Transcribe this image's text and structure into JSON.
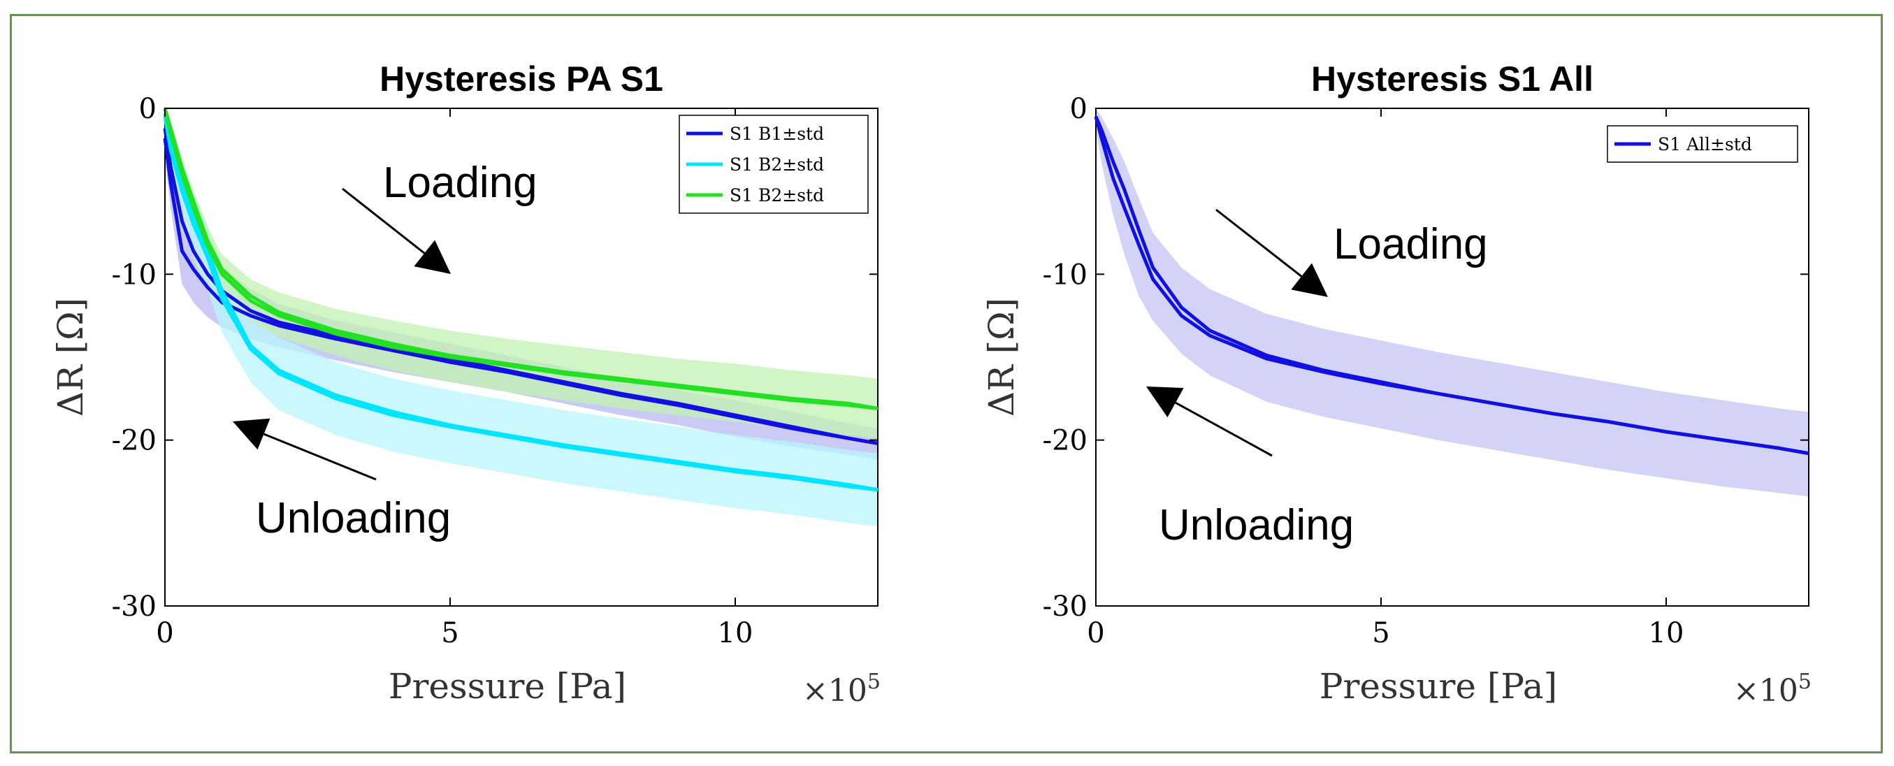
{
  "chart_data": [
    {
      "type": "line",
      "title": "Hysteresis PA S1",
      "xlabel": "Pressure [Pa]",
      "ylabel": "ΔR [Ω]",
      "x_multiplier": "×10",
      "x_multiplier_exp": "5",
      "xlim": [
        0,
        12.5
      ],
      "ylim": [
        -30,
        0
      ],
      "xticks": [
        0,
        5,
        10
      ],
      "xtick_labels": [
        "0",
        "5",
        "10"
      ],
      "yticks": [
        0,
        -10,
        -20,
        -30
      ],
      "ytick_labels": [
        "0",
        "-10",
        "-20",
        "-30"
      ],
      "legend_position": "top-right",
      "x": [
        0,
        0.1,
        0.3,
        0.5,
        0.75,
        1,
        1.5,
        2,
        3,
        4,
        5,
        6,
        7,
        8,
        9,
        10,
        11,
        12,
        12.5
      ],
      "series": [
        {
          "name": "S1 B1±std",
          "color": "#1010e0",
          "band_color": "#b8b8f2",
          "loading": [
            -1.8,
            -4.5,
            -8.6,
            -9.7,
            -10.8,
            -11.7,
            -12.5,
            -13.1,
            -13.9,
            -14.6,
            -15.3,
            -15.9,
            -16.6,
            -17.3,
            -17.9,
            -18.6,
            -19.3,
            -19.9,
            -20.2
          ],
          "unloading": [
            -1.2,
            -3.5,
            -6.8,
            -8.6,
            -10.0,
            -11.0,
            -12.2,
            -12.9,
            -13.7,
            -14.4,
            -15.1,
            -15.8,
            -16.5,
            -17.2,
            -17.8,
            -18.5,
            -19.2,
            -19.9,
            -20.2
          ],
          "std_upper": [
            -0.6,
            -2.5,
            -5.0,
            -6.8,
            -8.4,
            -9.5,
            -10.9,
            -11.8,
            -12.8,
            -13.5,
            -14.2,
            -14.9,
            -15.6,
            -16.3,
            -17.0,
            -17.6,
            -18.3,
            -19.0,
            -19.3
          ],
          "std_lower": [
            -3.0,
            -6.0,
            -10.6,
            -11.7,
            -12.6,
            -13.2,
            -13.9,
            -14.4,
            -15.2,
            -15.9,
            -16.5,
            -17.1,
            -17.8,
            -18.5,
            -19.1,
            -19.8,
            -20.4,
            -20.9,
            -21.2
          ]
        },
        {
          "name": "S1 B2±std",
          "color": "#00e5ff",
          "band_color": "#b8f6fb",
          "loading": [
            -0.5,
            -2.5,
            -5.0,
            -7.0,
            -9.0,
            -11.5,
            -14.5,
            -16.0,
            -17.5,
            -18.5,
            -19.2,
            -19.8,
            -20.4,
            -20.9,
            -21.4,
            -21.9,
            -22.3,
            -22.8,
            -23.0
          ],
          "unloading": [
            -0.3,
            -2.0,
            -4.5,
            -6.5,
            -8.5,
            -11.0,
            -14.3,
            -15.8,
            -17.3,
            -18.3,
            -19.1,
            -19.7,
            -20.3,
            -20.8,
            -21.3,
            -21.8,
            -22.2,
            -22.7,
            -23.0
          ],
          "std_upper": [
            0,
            -1.0,
            -3.0,
            -5.0,
            -7.0,
            -9.5,
            -12.5,
            -13.8,
            -15.3,
            -16.3,
            -17.0,
            -17.6,
            -18.2,
            -18.7,
            -19.2,
            -19.7,
            -20.1,
            -20.6,
            -20.8
          ],
          "std_lower": [
            -1.5,
            -4.0,
            -7.0,
            -9.0,
            -11.0,
            -13.5,
            -16.5,
            -18.2,
            -19.7,
            -20.7,
            -21.4,
            -22.0,
            -22.6,
            -23.1,
            -23.6,
            -24.1,
            -24.5,
            -25.0,
            -25.2
          ]
        },
        {
          "name": "S1 B2±std",
          "color": "#22e022",
          "band_color": "#c2f2b0",
          "loading": [
            0,
            -1.5,
            -4.0,
            -6.0,
            -8.3,
            -10.0,
            -11.6,
            -12.5,
            -13.6,
            -14.4,
            -15.0,
            -15.5,
            -16.0,
            -16.4,
            -16.8,
            -17.2,
            -17.6,
            -17.9,
            -18.1
          ],
          "unloading": [
            0,
            -1.2,
            -3.6,
            -5.6,
            -8.0,
            -9.7,
            -11.3,
            -12.3,
            -13.4,
            -14.2,
            -14.9,
            -15.4,
            -15.9,
            -16.3,
            -16.7,
            -17.1,
            -17.5,
            -17.8,
            -18.1
          ],
          "std_upper": [
            0,
            -0.8,
            -3.0,
            -5.0,
            -7.2,
            -8.8,
            -10.3,
            -11.1,
            -12.1,
            -12.8,
            -13.4,
            -13.9,
            -14.3,
            -14.7,
            -15.1,
            -15.4,
            -15.8,
            -16.1,
            -16.3
          ],
          "std_lower": [
            -1.0,
            -2.4,
            -5.0,
            -7.0,
            -9.3,
            -11.0,
            -12.8,
            -13.8,
            -14.9,
            -15.8,
            -16.5,
            -17.1,
            -17.6,
            -18.1,
            -18.5,
            -18.9,
            -19.3,
            -19.7,
            -19.9
          ]
        }
      ],
      "annotations": [
        {
          "text": "Loading",
          "direction": "down-right"
        },
        {
          "text": "Unloading",
          "direction": "up-left"
        }
      ]
    },
    {
      "type": "line",
      "title": "Hysteresis S1 All",
      "xlabel": "Pressure [Pa]",
      "ylabel": "ΔR [Ω]",
      "x_multiplier": "×10",
      "x_multiplier_exp": "5",
      "xlim": [
        0,
        12.5
      ],
      "ylim": [
        -30,
        0
      ],
      "xticks": [
        0,
        5,
        10
      ],
      "xtick_labels": [
        "0",
        "5",
        "10"
      ],
      "yticks": [
        0,
        -10,
        -20,
        -30
      ],
      "ytick_labels": [
        "0",
        "-10",
        "-20",
        "-30"
      ],
      "legend_position": "top-right",
      "x": [
        0,
        0.1,
        0.3,
        0.5,
        0.75,
        1,
        1.5,
        2,
        3,
        4,
        5,
        6,
        7,
        8,
        9,
        10,
        11,
        12,
        12.5
      ],
      "series": [
        {
          "name": "S1 All±std",
          "color": "#1010e0",
          "band_color": "#c4c4f4",
          "loading": [
            -0.5,
            -1.8,
            -4.2,
            -6.0,
            -8.2,
            -10.3,
            -12.5,
            -13.7,
            -15.1,
            -15.9,
            -16.6,
            -17.2,
            -17.8,
            -18.4,
            -18.9,
            -19.5,
            -20.0,
            -20.5,
            -20.8
          ],
          "unloading": [
            -0.5,
            -1.3,
            -3.2,
            -4.9,
            -7.3,
            -9.6,
            -12.0,
            -13.4,
            -14.9,
            -15.8,
            -16.5,
            -17.2,
            -17.8,
            -18.4,
            -18.9,
            -19.5,
            -20.0,
            -20.5,
            -20.8
          ],
          "std_upper": [
            0,
            -0.5,
            -1.8,
            -3.2,
            -5.4,
            -7.5,
            -9.6,
            -10.9,
            -12.4,
            -13.3,
            -14.0,
            -14.7,
            -15.3,
            -15.9,
            -16.5,
            -17.1,
            -17.6,
            -18.1,
            -18.3
          ],
          "std_lower": [
            -1.3,
            -3.3,
            -6.4,
            -8.8,
            -11.3,
            -12.8,
            -14.8,
            -16.1,
            -17.7,
            -18.6,
            -19.3,
            -20.0,
            -20.6,
            -21.2,
            -21.8,
            -22.3,
            -22.8,
            -23.2,
            -23.4
          ]
        }
      ],
      "annotations": [
        {
          "text": "Loading",
          "direction": "down-right"
        },
        {
          "text": "Unloading",
          "direction": "up-left"
        }
      ]
    }
  ]
}
